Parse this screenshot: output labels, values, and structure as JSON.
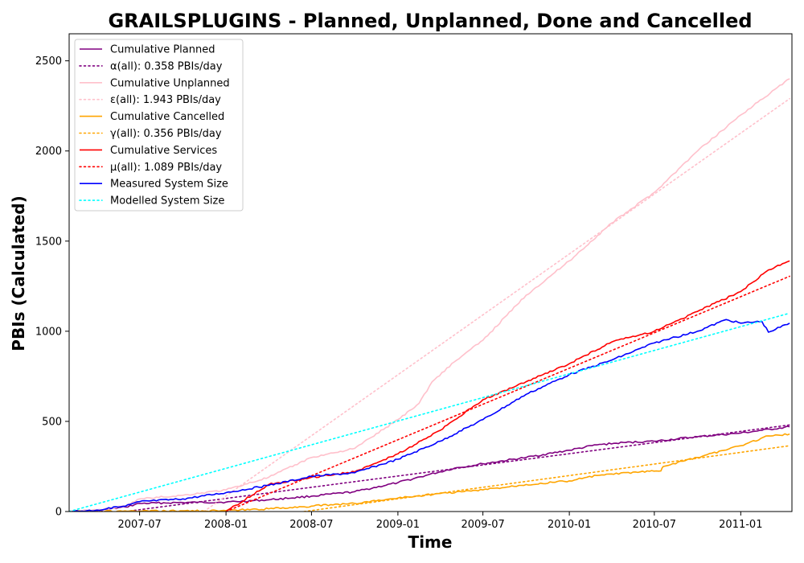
{
  "chart_data": {
    "type": "line",
    "title": "GRAILSPLUGINS - Planned, Unplanned, Done  and Cancelled",
    "xlabel": "Time",
    "ylabel": "PBIs (Calculated)",
    "xlim": [
      "2007-02-01",
      "2011-04-20"
    ],
    "ylim": [
      0,
      2650
    ],
    "x_ticks": [
      {
        "date": "2007-07-01",
        "label": "2007-07"
      },
      {
        "date": "2008-01-01",
        "label": "2008-01"
      },
      {
        "date": "2008-07-01",
        "label": "2008-07"
      },
      {
        "date": "2009-01-01",
        "label": "2009-01"
      },
      {
        "date": "2009-07-01",
        "label": "2009-07"
      },
      {
        "date": "2010-01-01",
        "label": "2010-01"
      },
      {
        "date": "2010-07-01",
        "label": "2010-07"
      },
      {
        "date": "2011-01-01",
        "label": "2011-01"
      }
    ],
    "y_ticks": [
      {
        "value": 0,
        "label": "0"
      },
      {
        "value": 500,
        "label": "500"
      },
      {
        "value": 1000,
        "label": "1000"
      },
      {
        "value": 1500,
        "label": "1500"
      },
      {
        "value": 2000,
        "label": "2000"
      },
      {
        "value": 2500,
        "label": "2500"
      }
    ],
    "grid": false,
    "legend_position": "top-left",
    "series": [
      {
        "name": "Cumulative Planned",
        "color": "#800080",
        "style": "solid",
        "points": [
          [
            "2007-02-01",
            0
          ],
          [
            "2007-04-01",
            5
          ],
          [
            "2007-06-01",
            25
          ],
          [
            "2007-07-01",
            45
          ],
          [
            "2007-10-01",
            50
          ],
          [
            "2008-01-01",
            52
          ],
          [
            "2008-04-01",
            65
          ],
          [
            "2008-07-01",
            85
          ],
          [
            "2008-10-01",
            110
          ],
          [
            "2009-01-01",
            160
          ],
          [
            "2009-03-01",
            200
          ],
          [
            "2009-05-01",
            240
          ],
          [
            "2009-07-01",
            265
          ],
          [
            "2009-10-01",
            300
          ],
          [
            "2010-01-01",
            340
          ],
          [
            "2010-03-01",
            370
          ],
          [
            "2010-05-01",
            383
          ],
          [
            "2010-07-01",
            390
          ],
          [
            "2010-10-01",
            415
          ],
          [
            "2011-01-01",
            435
          ],
          [
            "2011-02-15",
            450
          ],
          [
            "2011-04-15",
            470
          ]
        ]
      },
      {
        "name": "α(all): 0.358 PBIs/day",
        "color": "#800080",
        "style": "dotted",
        "points": [
          [
            "2007-06-01",
            0
          ],
          [
            "2011-04-15",
            480
          ]
        ]
      },
      {
        "name": "Cumulative Unplanned",
        "color": "#ffc0cb",
        "style": "solid",
        "points": [
          [
            "2007-02-01",
            0
          ],
          [
            "2007-04-01",
            8
          ],
          [
            "2007-06-01",
            30
          ],
          [
            "2007-07-01",
            70
          ],
          [
            "2007-10-01",
            90
          ],
          [
            "2008-01-01",
            120
          ],
          [
            "2008-04-01",
            190
          ],
          [
            "2008-07-01",
            300
          ],
          [
            "2008-10-01",
            350
          ],
          [
            "2009-01-01",
            510
          ],
          [
            "2009-02-15",
            600
          ],
          [
            "2009-03-15",
            720
          ],
          [
            "2009-05-01",
            830
          ],
          [
            "2009-07-01",
            950
          ],
          [
            "2009-10-01",
            1200
          ],
          [
            "2010-01-01",
            1390
          ],
          [
            "2010-04-01",
            1600
          ],
          [
            "2010-07-01",
            1770
          ],
          [
            "2010-10-01",
            2000
          ],
          [
            "2011-01-01",
            2200
          ],
          [
            "2011-04-15",
            2400
          ]
        ]
      },
      {
        "name": "ε(all): 1.943 PBIs/day",
        "color": "#ffc0cb",
        "style": "dotted",
        "points": [
          [
            "2007-11-15",
            0
          ],
          [
            "2011-04-15",
            2290
          ]
        ]
      },
      {
        "name": "Cumulative Cancelled",
        "color": "#ffa500",
        "style": "solid",
        "points": [
          [
            "2007-02-01",
            0
          ],
          [
            "2007-07-01",
            2
          ],
          [
            "2008-01-01",
            5
          ],
          [
            "2008-04-01",
            15
          ],
          [
            "2008-07-01",
            30
          ],
          [
            "2008-10-01",
            45
          ],
          [
            "2009-01-01",
            75
          ],
          [
            "2009-04-01",
            100
          ],
          [
            "2009-07-01",
            120
          ],
          [
            "2009-10-01",
            150
          ],
          [
            "2010-01-01",
            170
          ],
          [
            "2010-03-01",
            200
          ],
          [
            "2010-06-01",
            220
          ],
          [
            "2010-07-15",
            225
          ],
          [
            "2010-07-20",
            250
          ],
          [
            "2010-10-01",
            300
          ],
          [
            "2011-01-01",
            365
          ],
          [
            "2011-03-01",
            420
          ],
          [
            "2011-04-15",
            430
          ]
        ]
      },
      {
        "name": "γ(all): 0.356 PBIs/day",
        "color": "#ffa500",
        "style": "dotted",
        "points": [
          [
            "2008-06-15",
            0
          ],
          [
            "2011-04-15",
            365
          ]
        ]
      },
      {
        "name": "Cumulative Services",
        "color": "#ff0000",
        "style": "solid",
        "points": [
          [
            "2008-01-01",
            0
          ],
          [
            "2008-04-01",
            150
          ],
          [
            "2008-07-01",
            190
          ],
          [
            "2008-10-01",
            220
          ],
          [
            "2009-01-01",
            320
          ],
          [
            "2009-04-01",
            450
          ],
          [
            "2009-07-01",
            620
          ],
          [
            "2009-10-01",
            720
          ],
          [
            "2010-01-01",
            820
          ],
          [
            "2010-04-01",
            940
          ],
          [
            "2010-07-01",
            1000
          ],
          [
            "2010-10-01",
            1110
          ],
          [
            "2011-01-01",
            1220
          ],
          [
            "2011-03-01",
            1340
          ],
          [
            "2011-04-15",
            1390
          ]
        ]
      },
      {
        "name": "μ(all): 1.089 PBIs/day",
        "color": "#ff0000",
        "style": "dotted",
        "points": [
          [
            "2008-01-01",
            0
          ],
          [
            "2011-04-15",
            1305
          ]
        ]
      },
      {
        "name": "Measured System Size",
        "color": "#0000ff",
        "style": "solid",
        "points": [
          [
            "2007-02-01",
            0
          ],
          [
            "2007-04-01",
            8
          ],
          [
            "2007-06-01",
            30
          ],
          [
            "2007-07-01",
            55
          ],
          [
            "2007-10-01",
            70
          ],
          [
            "2008-01-01",
            105
          ],
          [
            "2008-04-01",
            145
          ],
          [
            "2008-07-01",
            195
          ],
          [
            "2008-10-01",
            215
          ],
          [
            "2009-01-01",
            290
          ],
          [
            "2009-04-01",
            390
          ],
          [
            "2009-07-01",
            510
          ],
          [
            "2009-10-01",
            650
          ],
          [
            "2010-01-01",
            760
          ],
          [
            "2010-04-01",
            840
          ],
          [
            "2010-07-01",
            935
          ],
          [
            "2010-10-01",
            1000
          ],
          [
            "2010-12-01",
            1065
          ],
          [
            "2011-01-01",
            1045
          ],
          [
            "2011-02-15",
            1055
          ],
          [
            "2011-03-01",
            995
          ],
          [
            "2011-04-15",
            1045
          ]
        ]
      },
      {
        "name": "Modelled System Size",
        "color": "#00ffff",
        "style": "dotted",
        "points": [
          [
            "2007-02-01",
            0
          ],
          [
            "2011-04-15",
            1100
          ]
        ]
      }
    ]
  }
}
